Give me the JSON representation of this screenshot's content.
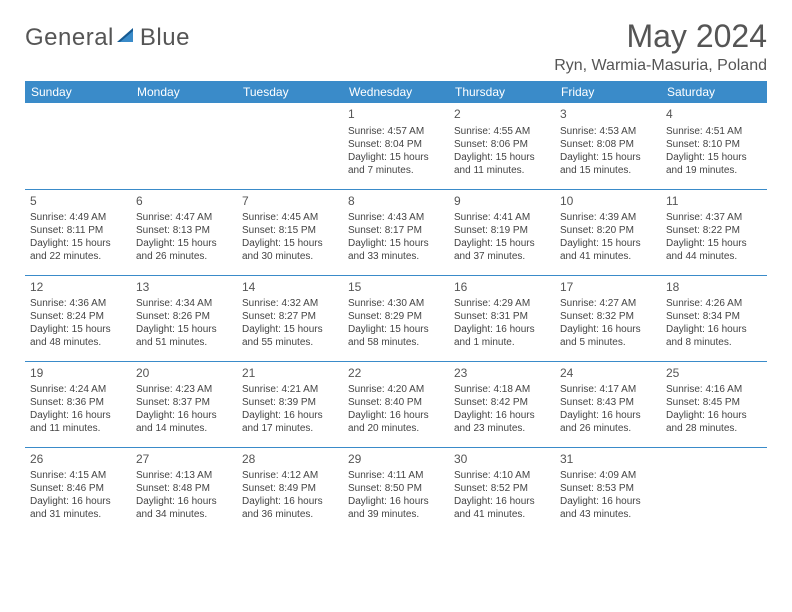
{
  "brand": {
    "part1": "General",
    "part2": "Blue"
  },
  "title": "May 2024",
  "location": "Ryn, Warmia-Masuria, Poland",
  "colors": {
    "header_bg": "#3a8bc9",
    "header_text": "#ffffff",
    "cell_border": "#3a8bc9",
    "text": "#444444",
    "title_text": "#555555",
    "brand_gray": "#555555",
    "brand_blue": "#2b7bbf",
    "background": "#ffffff"
  },
  "typography": {
    "title_fontsize": 32,
    "location_fontsize": 16,
    "header_fontsize": 12,
    "daynum_fontsize": 12,
    "cell_fontsize": 10
  },
  "weekdays": [
    "Sunday",
    "Monday",
    "Tuesday",
    "Wednesday",
    "Thursday",
    "Friday",
    "Saturday"
  ],
  "weeks": [
    [
      null,
      null,
      null,
      {
        "n": "1",
        "sr": "Sunrise: 4:57 AM",
        "ss": "Sunset: 8:04 PM",
        "dl": "Daylight: 15 hours and 7 minutes."
      },
      {
        "n": "2",
        "sr": "Sunrise: 4:55 AM",
        "ss": "Sunset: 8:06 PM",
        "dl": "Daylight: 15 hours and 11 minutes."
      },
      {
        "n": "3",
        "sr": "Sunrise: 4:53 AM",
        "ss": "Sunset: 8:08 PM",
        "dl": "Daylight: 15 hours and 15 minutes."
      },
      {
        "n": "4",
        "sr": "Sunrise: 4:51 AM",
        "ss": "Sunset: 8:10 PM",
        "dl": "Daylight: 15 hours and 19 minutes."
      }
    ],
    [
      {
        "n": "5",
        "sr": "Sunrise: 4:49 AM",
        "ss": "Sunset: 8:11 PM",
        "dl": "Daylight: 15 hours and 22 minutes."
      },
      {
        "n": "6",
        "sr": "Sunrise: 4:47 AM",
        "ss": "Sunset: 8:13 PM",
        "dl": "Daylight: 15 hours and 26 minutes."
      },
      {
        "n": "7",
        "sr": "Sunrise: 4:45 AM",
        "ss": "Sunset: 8:15 PM",
        "dl": "Daylight: 15 hours and 30 minutes."
      },
      {
        "n": "8",
        "sr": "Sunrise: 4:43 AM",
        "ss": "Sunset: 8:17 PM",
        "dl": "Daylight: 15 hours and 33 minutes."
      },
      {
        "n": "9",
        "sr": "Sunrise: 4:41 AM",
        "ss": "Sunset: 8:19 PM",
        "dl": "Daylight: 15 hours and 37 minutes."
      },
      {
        "n": "10",
        "sr": "Sunrise: 4:39 AM",
        "ss": "Sunset: 8:20 PM",
        "dl": "Daylight: 15 hours and 41 minutes."
      },
      {
        "n": "11",
        "sr": "Sunrise: 4:37 AM",
        "ss": "Sunset: 8:22 PM",
        "dl": "Daylight: 15 hours and 44 minutes."
      }
    ],
    [
      {
        "n": "12",
        "sr": "Sunrise: 4:36 AM",
        "ss": "Sunset: 8:24 PM",
        "dl": "Daylight: 15 hours and 48 minutes."
      },
      {
        "n": "13",
        "sr": "Sunrise: 4:34 AM",
        "ss": "Sunset: 8:26 PM",
        "dl": "Daylight: 15 hours and 51 minutes."
      },
      {
        "n": "14",
        "sr": "Sunrise: 4:32 AM",
        "ss": "Sunset: 8:27 PM",
        "dl": "Daylight: 15 hours and 55 minutes."
      },
      {
        "n": "15",
        "sr": "Sunrise: 4:30 AM",
        "ss": "Sunset: 8:29 PM",
        "dl": "Daylight: 15 hours and 58 minutes."
      },
      {
        "n": "16",
        "sr": "Sunrise: 4:29 AM",
        "ss": "Sunset: 8:31 PM",
        "dl": "Daylight: 16 hours and 1 minute."
      },
      {
        "n": "17",
        "sr": "Sunrise: 4:27 AM",
        "ss": "Sunset: 8:32 PM",
        "dl": "Daylight: 16 hours and 5 minutes."
      },
      {
        "n": "18",
        "sr": "Sunrise: 4:26 AM",
        "ss": "Sunset: 8:34 PM",
        "dl": "Daylight: 16 hours and 8 minutes."
      }
    ],
    [
      {
        "n": "19",
        "sr": "Sunrise: 4:24 AM",
        "ss": "Sunset: 8:36 PM",
        "dl": "Daylight: 16 hours and 11 minutes."
      },
      {
        "n": "20",
        "sr": "Sunrise: 4:23 AM",
        "ss": "Sunset: 8:37 PM",
        "dl": "Daylight: 16 hours and 14 minutes."
      },
      {
        "n": "21",
        "sr": "Sunrise: 4:21 AM",
        "ss": "Sunset: 8:39 PM",
        "dl": "Daylight: 16 hours and 17 minutes."
      },
      {
        "n": "22",
        "sr": "Sunrise: 4:20 AM",
        "ss": "Sunset: 8:40 PM",
        "dl": "Daylight: 16 hours and 20 minutes."
      },
      {
        "n": "23",
        "sr": "Sunrise: 4:18 AM",
        "ss": "Sunset: 8:42 PM",
        "dl": "Daylight: 16 hours and 23 minutes."
      },
      {
        "n": "24",
        "sr": "Sunrise: 4:17 AM",
        "ss": "Sunset: 8:43 PM",
        "dl": "Daylight: 16 hours and 26 minutes."
      },
      {
        "n": "25",
        "sr": "Sunrise: 4:16 AM",
        "ss": "Sunset: 8:45 PM",
        "dl": "Daylight: 16 hours and 28 minutes."
      }
    ],
    [
      {
        "n": "26",
        "sr": "Sunrise: 4:15 AM",
        "ss": "Sunset: 8:46 PM",
        "dl": "Daylight: 16 hours and 31 minutes."
      },
      {
        "n": "27",
        "sr": "Sunrise: 4:13 AM",
        "ss": "Sunset: 8:48 PM",
        "dl": "Daylight: 16 hours and 34 minutes."
      },
      {
        "n": "28",
        "sr": "Sunrise: 4:12 AM",
        "ss": "Sunset: 8:49 PM",
        "dl": "Daylight: 16 hours and 36 minutes."
      },
      {
        "n": "29",
        "sr": "Sunrise: 4:11 AM",
        "ss": "Sunset: 8:50 PM",
        "dl": "Daylight: 16 hours and 39 minutes."
      },
      {
        "n": "30",
        "sr": "Sunrise: 4:10 AM",
        "ss": "Sunset: 8:52 PM",
        "dl": "Daylight: 16 hours and 41 minutes."
      },
      {
        "n": "31",
        "sr": "Sunrise: 4:09 AM",
        "ss": "Sunset: 8:53 PM",
        "dl": "Daylight: 16 hours and 43 minutes."
      },
      null
    ]
  ]
}
